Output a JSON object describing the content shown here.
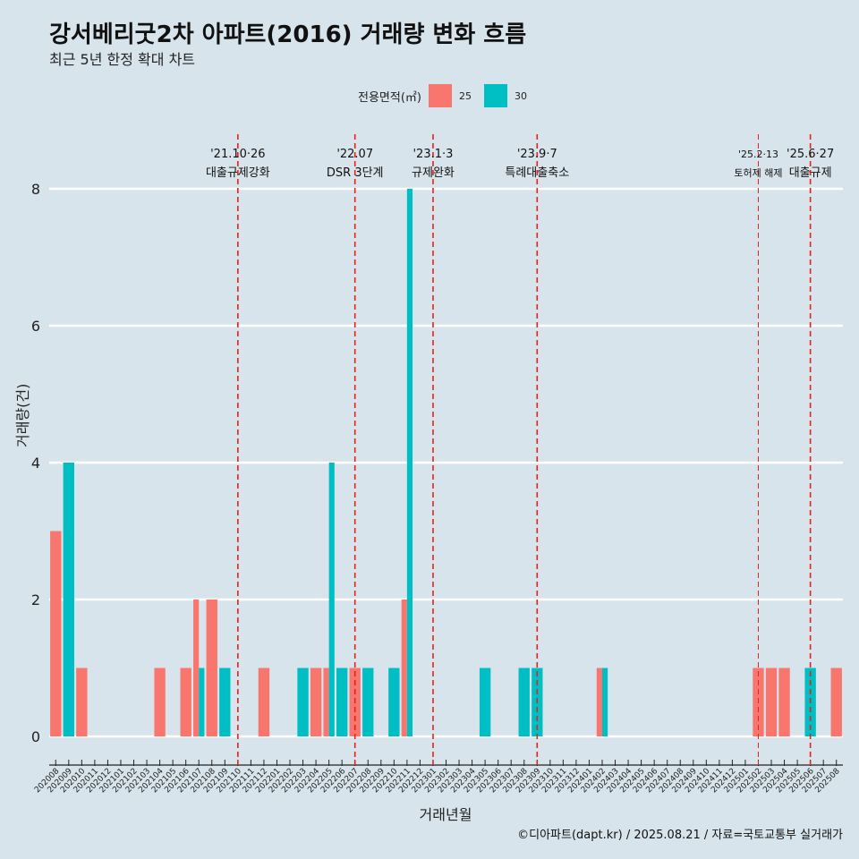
{
  "header": {
    "title": "강서베리굿2차 아파트(2016) 거래량 변화 흐름",
    "subtitle": "최근 5년 한정 확대 차트"
  },
  "legend": {
    "title": "전용면적(㎡)",
    "items": [
      {
        "label": "25",
        "color": "#F8766D"
      },
      {
        "label": "30",
        "color": "#00BFC4"
      }
    ]
  },
  "caption": "©디아파트(dapt.kr) / 2025.08.21 / 자료=국토교통부 실거래가",
  "chart_data": {
    "type": "bar",
    "xlabel": "거래년월",
    "ylabel": "거래량(건)",
    "ylim": [
      0,
      8
    ],
    "yticks": [
      0,
      2,
      4,
      6,
      8
    ],
    "grid": "horizontal",
    "legend_position": "top",
    "categories": [
      "202008",
      "202009",
      "202010",
      "202011",
      "202012",
      "202101",
      "202102",
      "202103",
      "202104",
      "202105",
      "202106",
      "202107",
      "202108",
      "202109",
      "202110",
      "202111",
      "202112",
      "202201",
      "202202",
      "202203",
      "202204",
      "202205",
      "202206",
      "202207",
      "202208",
      "202209",
      "202210",
      "202211",
      "202212",
      "202301",
      "202302",
      "202303",
      "202304",
      "202305",
      "202306",
      "202307",
      "202308",
      "202309",
      "202310",
      "202311",
      "202312",
      "202401",
      "202402",
      "202403",
      "202404",
      "202405",
      "202406",
      "202407",
      "202408",
      "202409",
      "202410",
      "202411",
      "202412",
      "202501",
      "202502",
      "202503",
      "202504",
      "202505",
      "202506",
      "202507",
      "202508"
    ],
    "series": [
      {
        "name": "25",
        "color": "#F8766D",
        "values": [
          3,
          0,
          1,
          0,
          0,
          0,
          0,
          0,
          1,
          0,
          1,
          2,
          2,
          0,
          0,
          0,
          1,
          0,
          0,
          0,
          1,
          1,
          0,
          1,
          0,
          0,
          0,
          2,
          0,
          0,
          0,
          0,
          0,
          0,
          0,
          0,
          0,
          0,
          0,
          0,
          0,
          0,
          1,
          0,
          0,
          0,
          0,
          0,
          0,
          0,
          0,
          0,
          0,
          0,
          1,
          1,
          1,
          0,
          0,
          0,
          1
        ]
      },
      {
        "name": "30",
        "color": "#00BFC4",
        "values": [
          0,
          4,
          0,
          0,
          0,
          0,
          0,
          0,
          0,
          0,
          0,
          1,
          0,
          1,
          0,
          0,
          0,
          0,
          0,
          1,
          0,
          4,
          1,
          0,
          1,
          0,
          1,
          8,
          0,
          0,
          0,
          0,
          0,
          1,
          0,
          0,
          1,
          1,
          0,
          0,
          0,
          0,
          1,
          0,
          0,
          0,
          0,
          0,
          0,
          0,
          0,
          0,
          0,
          0,
          0,
          0,
          0,
          0,
          1,
          0,
          0
        ]
      }
    ],
    "annotations": [
      {
        "category": "202110",
        "line1": "'21.10·26",
        "line2": "대출규제강화"
      },
      {
        "category": "202207",
        "line1": "'22.07",
        "line2": "DSR 3단계"
      },
      {
        "category": "202301",
        "line1": "'23.1·3",
        "line2": "규제완화"
      },
      {
        "category": "202309",
        "line1": "'23.9·7",
        "line2": "특례대출축소"
      },
      {
        "category": "202502",
        "line1": "'25.2·13",
        "line2": "토허제 해제"
      },
      {
        "category": "202506",
        "line1": "'25.6·27",
        "line2": "대출규제"
      }
    ]
  }
}
